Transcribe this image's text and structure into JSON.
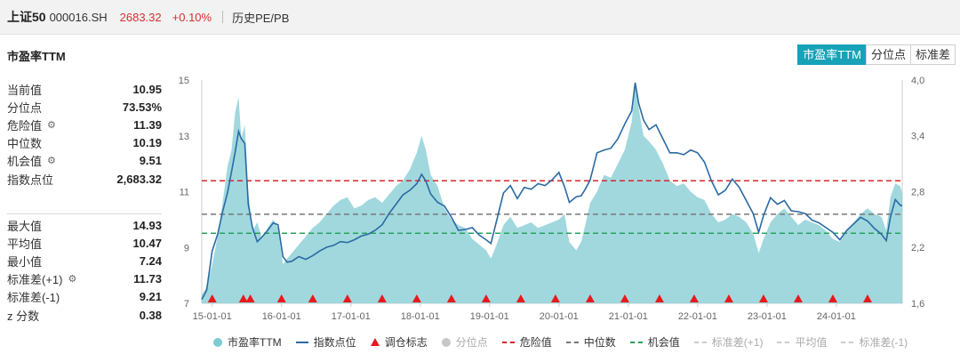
{
  "header": {
    "name": "上证50",
    "code": "000016.SH",
    "price": "2683.32",
    "change": "+0.10%",
    "tab": "历史PE/PB"
  },
  "section_title": "市盈率TTM",
  "mode_tabs": [
    "市盈率TTM",
    "分位点",
    "标准差"
  ],
  "stats_top": [
    {
      "label": "当前值",
      "value": "10.95",
      "gear": false
    },
    {
      "label": "分位点",
      "value": "73.53%",
      "gear": false
    },
    {
      "label": "危险值",
      "value": "11.39",
      "gear": true
    },
    {
      "label": "中位数",
      "value": "10.19",
      "gear": false
    },
    {
      "label": "机会值",
      "value": "9.51",
      "gear": true
    },
    {
      "label": "指数点位",
      "value": "2,683.32",
      "gear": false
    }
  ],
  "stats_bottom": [
    {
      "label": "最大值",
      "value": "14.93",
      "gear": false
    },
    {
      "label": "平均值",
      "value": "10.47",
      "gear": false
    },
    {
      "label": "最小值",
      "value": "7.24",
      "gear": false
    },
    {
      "label": "标准差(+1)",
      "value": "11.73",
      "gear": true
    },
    {
      "label": "标准差(-1)",
      "value": "9.21",
      "gear": false
    },
    {
      "label": "z 分数",
      "value": "0.38",
      "gear": false
    }
  ],
  "legend": [
    {
      "label": "市盈率TTM",
      "kind": "dot",
      "color": "#7dcbd3",
      "dim": false
    },
    {
      "label": "指数点位",
      "kind": "line",
      "color": "#2b6aa3",
      "dim": false
    },
    {
      "label": "调仓标志",
      "kind": "triangle",
      "color": "#e8191c",
      "dim": false
    },
    {
      "label": "分位点",
      "kind": "dot",
      "color": "#c8c8c8",
      "dim": true
    },
    {
      "label": "危险值",
      "kind": "dash",
      "color": "#d9262b",
      "dim": false
    },
    {
      "label": "中位数",
      "kind": "dash",
      "color": "#777777",
      "dim": false
    },
    {
      "label": "机会值",
      "kind": "dash",
      "color": "#27a35a",
      "dim": false
    },
    {
      "label": "标准差(+1)",
      "kind": "dash",
      "color": "#cccccc",
      "dim": true
    },
    {
      "label": "平均值",
      "kind": "dash",
      "color": "#cccccc",
      "dim": true
    },
    {
      "label": "标准差(-1)",
      "kind": "dash",
      "color": "#cccccc",
      "dim": true
    }
  ],
  "chart_data": {
    "type": "area",
    "x_ticks": [
      "15-01-01",
      "16-01-01",
      "17-01-01",
      "18-01-01",
      "19-01-01",
      "20-01-01",
      "21-01-01",
      "22-01-01",
      "23-01-01",
      "24-01-01"
    ],
    "x_tick_times": [
      2015.0,
      2016.0,
      2017.0,
      2018.0,
      2019.0,
      2020.0,
      2021.0,
      2022.0,
      2023.0,
      2024.0
    ],
    "xlim": [
      2014.85,
      2024.95
    ],
    "y_left_ticks": [
      "7",
      "9",
      "11",
      "13",
      "15"
    ],
    "ylim_left": [
      7,
      15
    ],
    "y_right_ticks": [
      "1,640",
      "2,238",
      "2,836",
      "3,434",
      "4,029"
    ],
    "ylim_right": [
      1640,
      4029
    ],
    "danger": 11.39,
    "median": 10.19,
    "opportunity": 9.51,
    "pe_series": {
      "name": "市盈率TTM",
      "color": "#8fd1d8",
      "points": [
        [
          2014.85,
          7.3
        ],
        [
          2014.92,
          7.6
        ],
        [
          2015.0,
          8.4
        ],
        [
          2015.08,
          9.4
        ],
        [
          2015.15,
          10.6
        ],
        [
          2015.22,
          11.9
        ],
        [
          2015.28,
          12.5
        ],
        [
          2015.33,
          13.8
        ],
        [
          2015.38,
          14.4
        ],
        [
          2015.42,
          12.9
        ],
        [
          2015.47,
          13.4
        ],
        [
          2015.52,
          11.0
        ],
        [
          2015.58,
          9.6
        ],
        [
          2015.65,
          9.9
        ],
        [
          2015.72,
          9.3
        ],
        [
          2015.8,
          9.7
        ],
        [
          2015.88,
          10.0
        ],
        [
          2015.95,
          9.7
        ],
        [
          2016.02,
          8.4
        ],
        [
          2016.08,
          8.6
        ],
        [
          2016.15,
          8.8
        ],
        [
          2016.25,
          9.1
        ],
        [
          2016.35,
          9.4
        ],
        [
          2016.45,
          9.7
        ],
        [
          2016.55,
          9.9
        ],
        [
          2016.65,
          10.2
        ],
        [
          2016.75,
          10.5
        ],
        [
          2016.85,
          10.7
        ],
        [
          2016.95,
          10.8
        ],
        [
          2017.05,
          10.4
        ],
        [
          2017.15,
          10.5
        ],
        [
          2017.25,
          10.7
        ],
        [
          2017.35,
          10.8
        ],
        [
          2017.45,
          10.6
        ],
        [
          2017.55,
          10.9
        ],
        [
          2017.65,
          11.2
        ],
        [
          2017.75,
          11.4
        ],
        [
          2017.85,
          11.8
        ],
        [
          2017.95,
          12.4
        ],
        [
          2018.02,
          13.0
        ],
        [
          2018.08,
          12.5
        ],
        [
          2018.15,
          11.6
        ],
        [
          2018.25,
          11.2
        ],
        [
          2018.35,
          10.4
        ],
        [
          2018.45,
          10.0
        ],
        [
          2018.55,
          9.8
        ],
        [
          2018.65,
          9.7
        ],
        [
          2018.75,
          9.3
        ],
        [
          2018.85,
          9.1
        ],
        [
          2018.95,
          8.9
        ],
        [
          2019.02,
          8.6
        ],
        [
          2019.1,
          9.1
        ],
        [
          2019.2,
          9.8
        ],
        [
          2019.3,
          10.1
        ],
        [
          2019.4,
          9.7
        ],
        [
          2019.5,
          9.8
        ],
        [
          2019.6,
          9.9
        ],
        [
          2019.7,
          9.7
        ],
        [
          2019.8,
          9.8
        ],
        [
          2019.9,
          9.9
        ],
        [
          2020.0,
          10.0
        ],
        [
          2020.08,
          10.2
        ],
        [
          2020.15,
          9.2
        ],
        [
          2020.25,
          8.9
        ],
        [
          2020.32,
          9.2
        ],
        [
          2020.38,
          9.8
        ],
        [
          2020.45,
          10.6
        ],
        [
          2020.55,
          11.0
        ],
        [
          2020.65,
          11.6
        ],
        [
          2020.75,
          11.5
        ],
        [
          2020.85,
          12.0
        ],
        [
          2020.95,
          12.5
        ],
        [
          2021.05,
          13.5
        ],
        [
          2021.1,
          14.9
        ],
        [
          2021.15,
          14.0
        ],
        [
          2021.22,
          13.0
        ],
        [
          2021.3,
          12.8
        ],
        [
          2021.4,
          12.5
        ],
        [
          2021.5,
          12.0
        ],
        [
          2021.6,
          11.4
        ],
        [
          2021.7,
          11.2
        ],
        [
          2021.8,
          11.3
        ],
        [
          2021.9,
          11.0
        ],
        [
          2022.0,
          10.8
        ],
        [
          2022.1,
          10.7
        ],
        [
          2022.2,
          10.2
        ],
        [
          2022.3,
          9.9
        ],
        [
          2022.4,
          10.0
        ],
        [
          2022.5,
          10.2
        ],
        [
          2022.6,
          10.1
        ],
        [
          2022.7,
          9.9
        ],
        [
          2022.8,
          9.5
        ],
        [
          2022.88,
          8.8
        ],
        [
          2022.95,
          9.3
        ],
        [
          2023.05,
          9.9
        ],
        [
          2023.15,
          10.2
        ],
        [
          2023.25,
          10.4
        ],
        [
          2023.35,
          10.1
        ],
        [
          2023.45,
          9.8
        ],
        [
          2023.55,
          10.0
        ],
        [
          2023.65,
          9.9
        ],
        [
          2023.75,
          9.8
        ],
        [
          2023.85,
          9.6
        ],
        [
          2023.95,
          9.3
        ],
        [
          2024.05,
          9.2
        ],
        [
          2024.15,
          9.6
        ],
        [
          2024.25,
          9.9
        ],
        [
          2024.35,
          10.2
        ],
        [
          2024.45,
          10.4
        ],
        [
          2024.55,
          10.2
        ],
        [
          2024.65,
          10.1
        ],
        [
          2024.72,
          9.6
        ],
        [
          2024.78,
          10.8
        ],
        [
          2024.85,
          11.3
        ],
        [
          2024.92,
          11.2
        ],
        [
          2024.95,
          10.95
        ]
      ]
    },
    "index_series": {
      "name": "指数点位",
      "color": "#2b6aa3",
      "points": [
        [
          2014.85,
          1680
        ],
        [
          2014.92,
          1780
        ],
        [
          2015.0,
          2200
        ],
        [
          2015.08,
          2380
        ],
        [
          2015.15,
          2620
        ],
        [
          2015.22,
          2820
        ],
        [
          2015.28,
          3050
        ],
        [
          2015.33,
          3250
        ],
        [
          2015.38,
          3480
        ],
        [
          2015.42,
          3400
        ],
        [
          2015.47,
          3350
        ],
        [
          2015.52,
          2700
        ],
        [
          2015.58,
          2450
        ],
        [
          2015.65,
          2300
        ],
        [
          2015.72,
          2350
        ],
        [
          2015.8,
          2420
        ],
        [
          2015.88,
          2500
        ],
        [
          2015.95,
          2480
        ],
        [
          2016.02,
          2140
        ],
        [
          2016.08,
          2080
        ],
        [
          2016.15,
          2090
        ],
        [
          2016.25,
          2140
        ],
        [
          2016.35,
          2110
        ],
        [
          2016.45,
          2150
        ],
        [
          2016.55,
          2200
        ],
        [
          2016.65,
          2240
        ],
        [
          2016.75,
          2260
        ],
        [
          2016.85,
          2300
        ],
        [
          2016.95,
          2290
        ],
        [
          2017.05,
          2320
        ],
        [
          2017.15,
          2360
        ],
        [
          2017.25,
          2380
        ],
        [
          2017.35,
          2420
        ],
        [
          2017.45,
          2480
        ],
        [
          2017.55,
          2600
        ],
        [
          2017.65,
          2700
        ],
        [
          2017.75,
          2800
        ],
        [
          2017.85,
          2850
        ],
        [
          2017.95,
          2920
        ],
        [
          2018.02,
          3020
        ],
        [
          2018.08,
          2950
        ],
        [
          2018.15,
          2810
        ],
        [
          2018.25,
          2720
        ],
        [
          2018.35,
          2680
        ],
        [
          2018.45,
          2560
        ],
        [
          2018.55,
          2420
        ],
        [
          2018.65,
          2430
        ],
        [
          2018.75,
          2450
        ],
        [
          2018.85,
          2370
        ],
        [
          2018.95,
          2320
        ],
        [
          2019.02,
          2280
        ],
        [
          2019.1,
          2520
        ],
        [
          2019.2,
          2820
        ],
        [
          2019.3,
          2900
        ],
        [
          2019.4,
          2760
        ],
        [
          2019.5,
          2880
        ],
        [
          2019.6,
          2860
        ],
        [
          2019.7,
          2920
        ],
        [
          2019.8,
          2900
        ],
        [
          2019.9,
          2960
        ],
        [
          2020.0,
          3040
        ],
        [
          2020.08,
          2890
        ],
        [
          2020.15,
          2720
        ],
        [
          2020.25,
          2780
        ],
        [
          2020.32,
          2790
        ],
        [
          2020.38,
          2860
        ],
        [
          2020.45,
          2960
        ],
        [
          2020.55,
          3250
        ],
        [
          2020.65,
          3280
        ],
        [
          2020.75,
          3300
        ],
        [
          2020.85,
          3400
        ],
        [
          2020.95,
          3560
        ],
        [
          2021.05,
          3700
        ],
        [
          2021.1,
          4000
        ],
        [
          2021.15,
          3780
        ],
        [
          2021.22,
          3600
        ],
        [
          2021.3,
          3500
        ],
        [
          2021.4,
          3550
        ],
        [
          2021.5,
          3400
        ],
        [
          2021.6,
          3250
        ],
        [
          2021.7,
          3250
        ],
        [
          2021.8,
          3230
        ],
        [
          2021.9,
          3280
        ],
        [
          2022.0,
          3250
        ],
        [
          2022.1,
          3150
        ],
        [
          2022.2,
          2950
        ],
        [
          2022.3,
          2800
        ],
        [
          2022.4,
          2850
        ],
        [
          2022.5,
          2970
        ],
        [
          2022.6,
          2880
        ],
        [
          2022.7,
          2740
        ],
        [
          2022.8,
          2600
        ],
        [
          2022.88,
          2400
        ],
        [
          2022.95,
          2580
        ],
        [
          2023.05,
          2770
        ],
        [
          2023.15,
          2700
        ],
        [
          2023.25,
          2740
        ],
        [
          2023.35,
          2630
        ],
        [
          2023.45,
          2620
        ],
        [
          2023.55,
          2600
        ],
        [
          2023.65,
          2530
        ],
        [
          2023.75,
          2500
        ],
        [
          2023.85,
          2450
        ],
        [
          2023.95,
          2400
        ],
        [
          2024.05,
          2320
        ],
        [
          2024.15,
          2420
        ],
        [
          2024.25,
          2490
        ],
        [
          2024.35,
          2560
        ],
        [
          2024.45,
          2520
        ],
        [
          2024.55,
          2440
        ],
        [
          2024.65,
          2380
        ],
        [
          2024.72,
          2310
        ],
        [
          2024.78,
          2560
        ],
        [
          2024.85,
          2750
        ],
        [
          2024.92,
          2690
        ],
        [
          2024.95,
          2683
        ]
      ]
    },
    "rebalance_marks": [
      2015.0,
      2015.45,
      2015.55,
      2016.0,
      2016.45,
      2016.95,
      2017.45,
      2017.95,
      2018.45,
      2018.95,
      2019.45,
      2019.95,
      2020.45,
      2020.95,
      2021.45,
      2021.95,
      2022.45,
      2022.95,
      2023.45,
      2023.95,
      2024.45
    ]
  }
}
